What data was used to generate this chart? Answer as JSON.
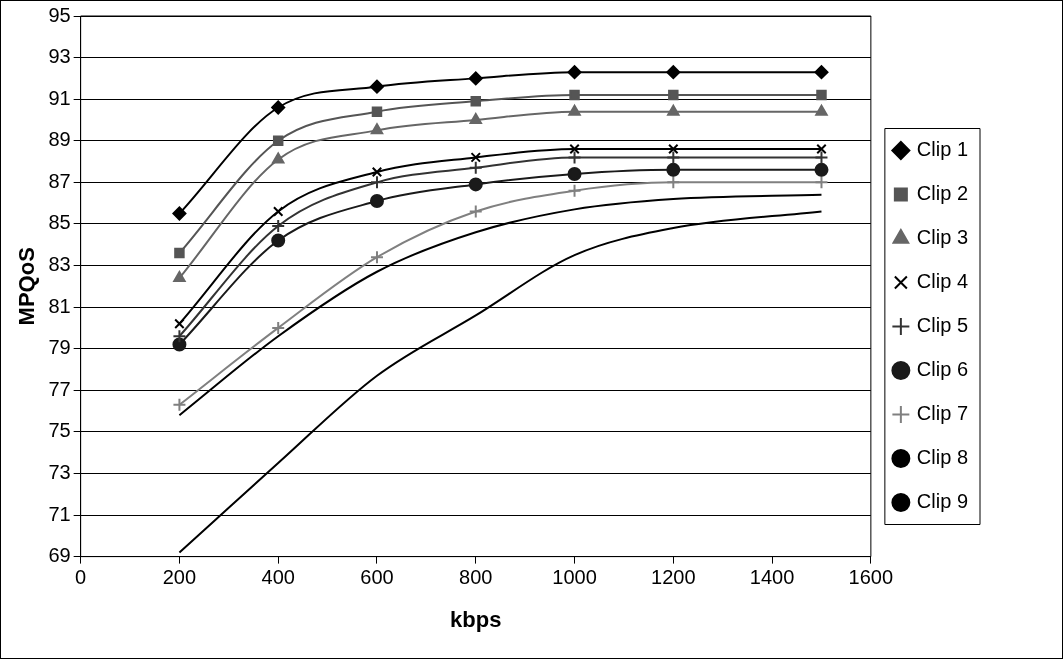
{
  "chart_data": {
    "type": "line",
    "xlabel": "kbps",
    "ylabel": "MPQoS",
    "x": [
      200,
      400,
      600,
      800,
      1000,
      1200,
      1500
    ],
    "series": [
      {
        "name": "Clip 1",
        "color": "#000000",
        "marker": "diamond",
        "values": [
          85.5,
          90.6,
          91.6,
          92.0,
          92.3,
          92.3,
          92.3
        ]
      },
      {
        "name": "Clip 2",
        "color": "#555555",
        "marker": "square",
        "values": [
          83.6,
          89.0,
          90.4,
          90.9,
          91.2,
          91.2,
          91.2
        ]
      },
      {
        "name": "Clip 3",
        "color": "#666666",
        "marker": "triangle",
        "values": [
          82.4,
          88.1,
          89.5,
          90.0,
          90.4,
          90.4,
          90.4
        ]
      },
      {
        "name": "Clip 4",
        "color": "#000000",
        "marker": "x",
        "values": [
          80.2,
          85.6,
          87.5,
          88.2,
          88.6,
          88.6,
          88.6
        ]
      },
      {
        "name": "Clip 5",
        "color": "#333333",
        "marker": "cross",
        "values": [
          79.6,
          84.9,
          87.0,
          87.7,
          88.2,
          88.2,
          88.2
        ]
      },
      {
        "name": "Clip 6",
        "color": "#1a1a1a",
        "marker": "circle",
        "values": [
          79.2,
          84.2,
          86.1,
          86.9,
          87.4,
          87.6,
          87.6
        ]
      },
      {
        "name": "Clip 7",
        "color": "#808080",
        "marker": "cross",
        "values": [
          76.3,
          80.0,
          83.4,
          85.6,
          86.6,
          87.0,
          87.0
        ]
      },
      {
        "name": "Clip 8",
        "color": "#000000",
        "marker": "none",
        "values": [
          75.8,
          79.6,
          82.7,
          84.6,
          85.7,
          86.2,
          86.4
        ]
      },
      {
        "name": "Clip 9",
        "color": "#000000",
        "marker": "none",
        "values": [
          69.2,
          73.5,
          77.7,
          80.6,
          83.5,
          84.8,
          85.6
        ]
      }
    ],
    "xlim": [
      0,
      1600
    ],
    "xticks": [
      0,
      200,
      400,
      600,
      800,
      1000,
      1200,
      1400,
      1600
    ],
    "ylim": [
      69,
      95
    ],
    "yticks": [
      69,
      71,
      73,
      75,
      77,
      79,
      81,
      83,
      85,
      87,
      89,
      91,
      93,
      95
    ],
    "grid": "y",
    "legend": "right"
  }
}
